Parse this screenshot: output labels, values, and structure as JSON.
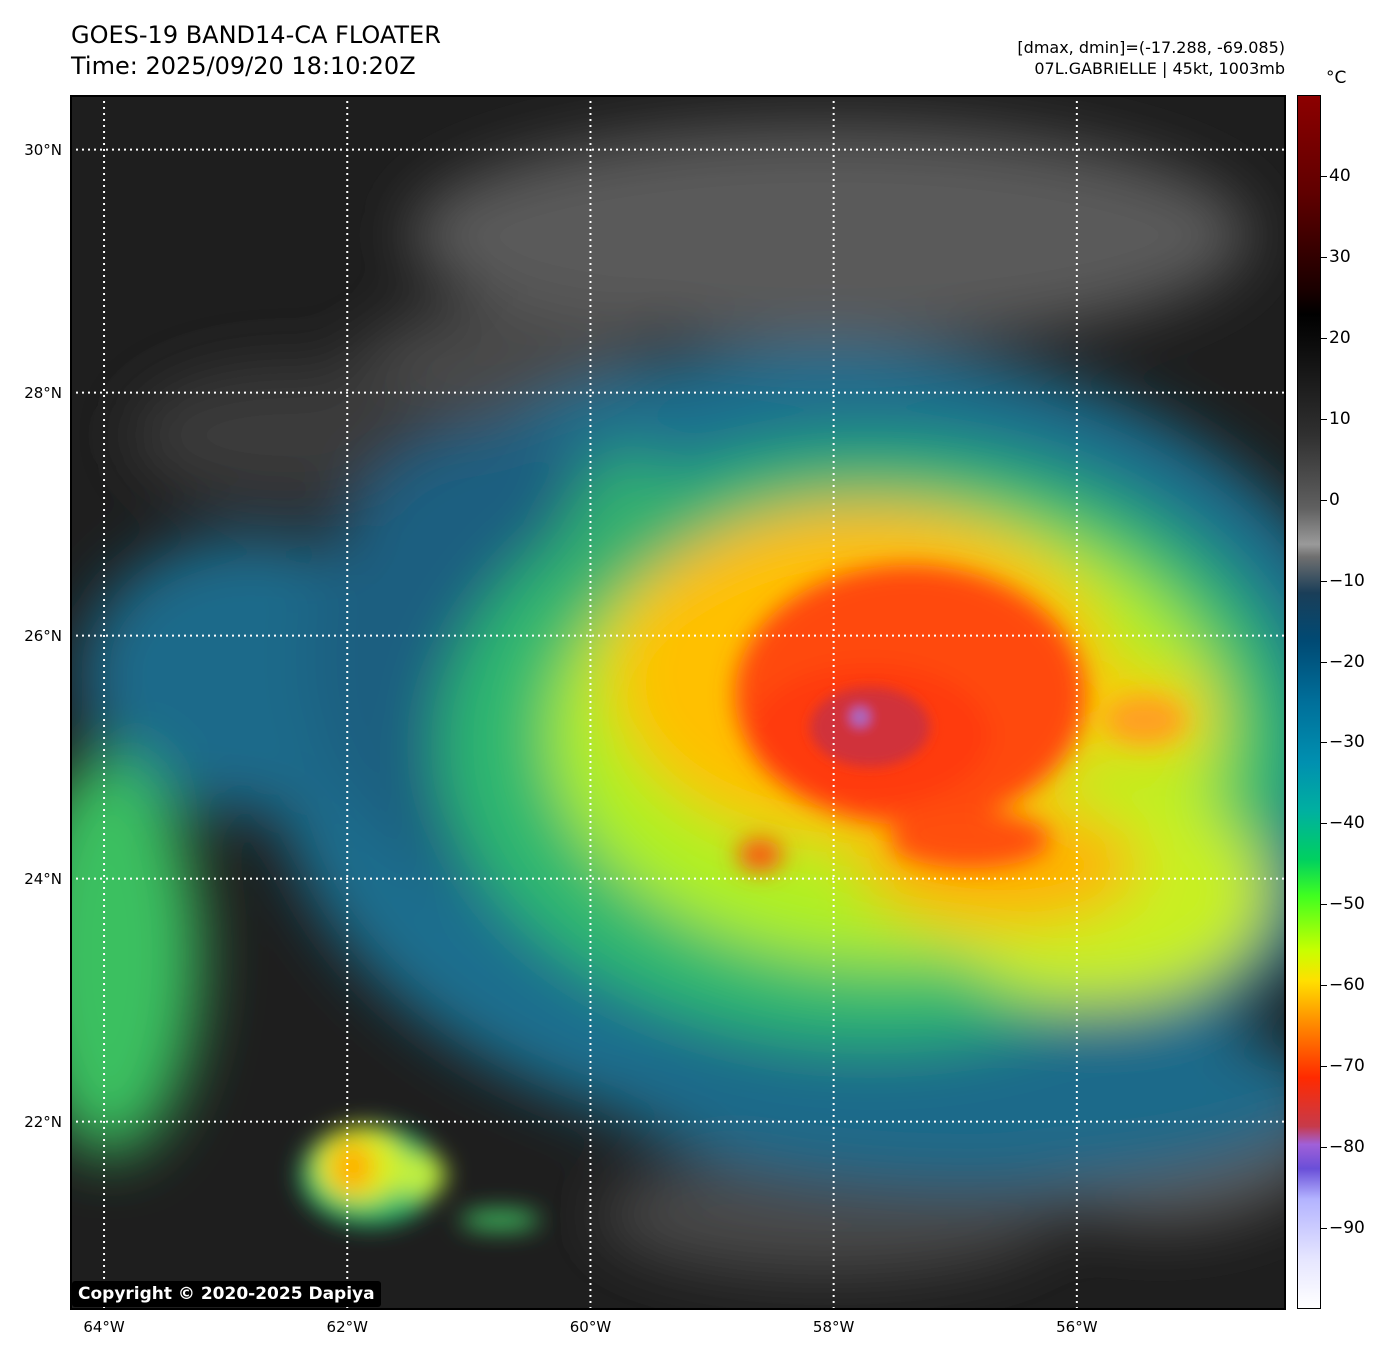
{
  "title_line1": "GOES-19 BAND14-CA FLOATER",
  "title_line2": "Time: 2025/09/20 18:10:20Z",
  "info_line1": "[dmax, dmin]=(-17.288, -69.085)",
  "info_line2": "07L.GABRIELLE | 45kt, 1003mb",
  "copyright": "Copyright © 2020-2025 Dapiya",
  "colorbar": {
    "unit": "°C",
    "min": -100,
    "max": 50,
    "ticks": [
      {
        "value": 40,
        "label": "40"
      },
      {
        "value": 30,
        "label": "30"
      },
      {
        "value": 20,
        "label": "20"
      },
      {
        "value": 10,
        "label": "10"
      },
      {
        "value": 0,
        "label": "0"
      },
      {
        "value": -10,
        "label": "−10"
      },
      {
        "value": -20,
        "label": "−20"
      },
      {
        "value": -30,
        "label": "−30"
      },
      {
        "value": -40,
        "label": "−40"
      },
      {
        "value": -50,
        "label": "−50"
      },
      {
        "value": -60,
        "label": "−60"
      },
      {
        "value": -70,
        "label": "−70"
      },
      {
        "value": -80,
        "label": "−80"
      },
      {
        "value": -90,
        "label": "−90"
      }
    ]
  },
  "map": {
    "lon_range": [
      -64.28,
      -54.28
    ],
    "lat_range": [
      20.45,
      30.45
    ],
    "lat_labels": [
      {
        "value": 30,
        "label": "30°N"
      },
      {
        "value": 28,
        "label": "28°N"
      },
      {
        "value": 26,
        "label": "26°N"
      },
      {
        "value": 24,
        "label": "24°N"
      },
      {
        "value": 22,
        "label": "22°N"
      }
    ],
    "lon_labels": [
      {
        "value": -64,
        "label": "64°W"
      },
      {
        "value": -62,
        "label": "62°W"
      },
      {
        "value": -60,
        "label": "60°W"
      },
      {
        "value": -58,
        "label": "58°W"
      },
      {
        "value": -56,
        "label": "56°W"
      }
    ],
    "storm_center": {
      "lon": -57.8,
      "lat": 25.2
    }
  }
}
